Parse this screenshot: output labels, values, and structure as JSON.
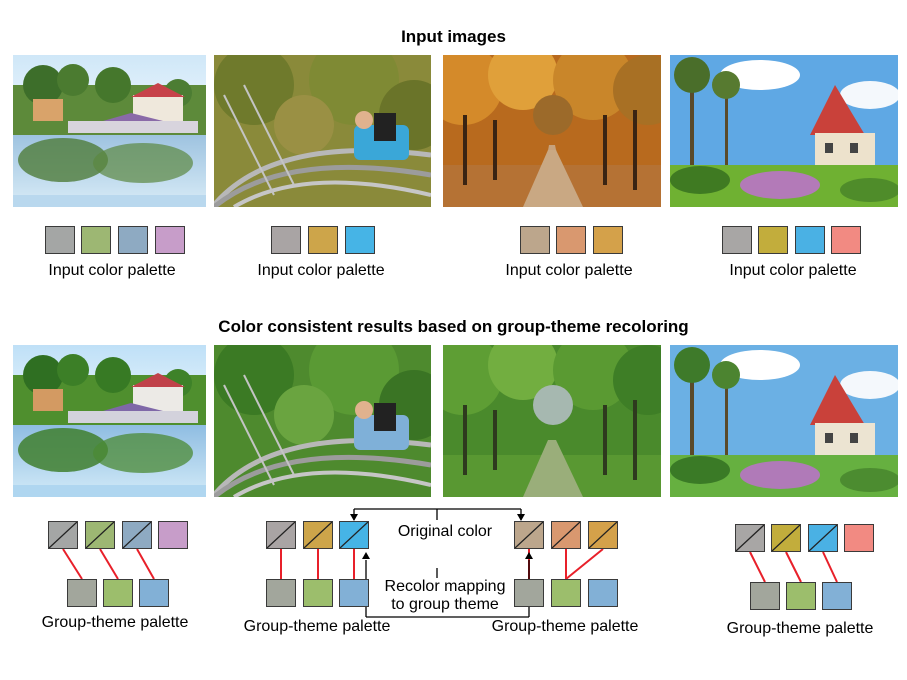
{
  "top_title": "Input images",
  "bottom_title": "Color consistent results based on group-theme recoloring",
  "input_palettes": [
    {
      "label": "Input color palette",
      "colors": [
        "#a4a6a5",
        "#9db773",
        "#8eaac2",
        "#c79dc9"
      ]
    },
    {
      "label": "Input color palette",
      "colors": [
        "#a9a4a4",
        "#cda54a",
        "#46b4e6"
      ]
    },
    {
      "label": "Input color palette",
      "colors": [
        "#bca68c",
        "#d9986f",
        "#d4a14a"
      ]
    },
    {
      "label": "Input color palette",
      "colors": [
        "#a8a6a5",
        "#c2ad3c",
        "#4ab1e4",
        "#f28a82"
      ]
    }
  ],
  "group_palettes": [
    {
      "label": "Group-theme palette",
      "original": [
        "#a4a6a5",
        "#9db773",
        "#8eaac2",
        "#c79dc9"
      ],
      "theme": [
        "#a2a69c",
        "#9cbe6c",
        "#82b0d6"
      ]
    },
    {
      "label": "Group-theme palette",
      "original": [
        "#a9a4a4",
        "#cda54a",
        "#46b4e6"
      ],
      "theme": [
        "#a2a69c",
        "#9cbe6c",
        "#82b0d6"
      ]
    },
    {
      "label": "Group-theme palette",
      "original": [
        "#bca68c",
        "#d9986f",
        "#d4a14a"
      ],
      "theme": [
        "#a2a69c",
        "#9cbe6c",
        "#82b0d6"
      ]
    },
    {
      "label": "Group-theme palette",
      "original": [
        "#a8a6a5",
        "#c2ad3c",
        "#4ab1e4",
        "#f28a82"
      ],
      "theme": [
        "#a2a69c",
        "#9cbe6c",
        "#82b0d6"
      ]
    }
  ],
  "annotation_original": "Original color",
  "annotation_recolor_line1": "Recolor mapping",
  "annotation_recolor_line2": "to group theme",
  "line_color": "#e8202a"
}
